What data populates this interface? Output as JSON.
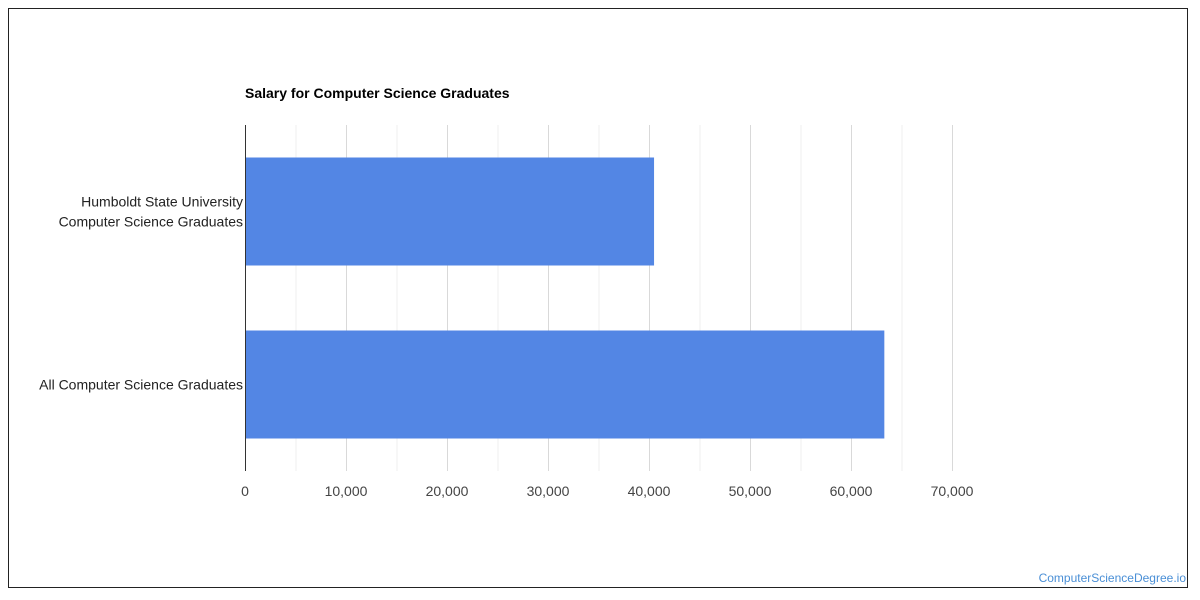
{
  "watermark": "ComputerScienceDegree.io",
  "colors": {
    "bar": "#5386e4",
    "grid_major": "#d9d9d9",
    "grid_minor": "#efefef",
    "axis": "#333333"
  },
  "chart_data": {
    "type": "bar",
    "orientation": "horizontal",
    "title": "Salary for Computer Science Graduates",
    "xlabel": "",
    "ylabel": "",
    "categories": [
      [
        "Humboldt State University",
        "Computer Science Graduates"
      ],
      [
        "All Computer Science Graduates"
      ]
    ],
    "values": [
      40500,
      63300
    ],
    "xlim": [
      0,
      70000
    ],
    "ticks": [
      "0",
      "10,000",
      "20,000",
      "30,000",
      "40,000",
      "50,000",
      "60,000",
      "70,000"
    ],
    "tick_values": [
      0,
      10000,
      20000,
      30000,
      40000,
      50000,
      60000,
      70000
    ],
    "grid": true,
    "legend": "none"
  }
}
